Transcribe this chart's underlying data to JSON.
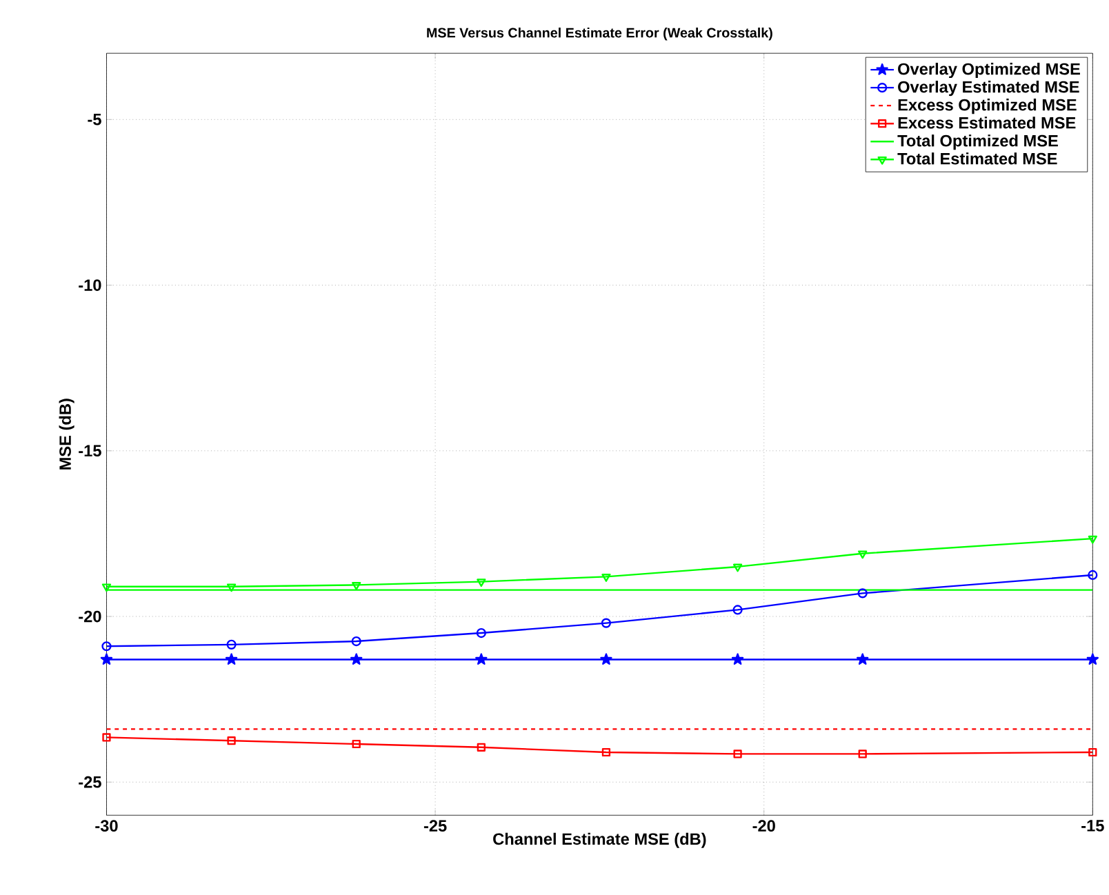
{
  "chart_data": {
    "type": "line",
    "title": "MSE Versus Channel Estimate Error (Weak Crosstalk)",
    "xlabel": "Channel Estimate MSE (dB)",
    "ylabel": "MSE (dB)",
    "x": [
      -30,
      -28.1,
      -26.2,
      -24.3,
      -22.4,
      -20.4,
      -18.5,
      -15
    ],
    "series": [
      {
        "name": "Overlay Optimized MSE",
        "color": "#0000ff",
        "marker": "star",
        "line_style": "solid",
        "values": [
          -21.3,
          -21.3,
          -21.3,
          -21.3,
          -21.3,
          -21.3,
          -21.3,
          -21.3
        ]
      },
      {
        "name": "Overlay Estimated MSE",
        "color": "#0000ff",
        "marker": "circle",
        "line_style": "solid",
        "values": [
          -20.9,
          -20.85,
          -20.75,
          -20.5,
          -20.2,
          -19.8,
          -19.3,
          -18.75
        ]
      },
      {
        "name": "Excess Optimized MSE",
        "color": "#ff0000",
        "marker": "none",
        "line_style": "dashed",
        "values": [
          -23.4,
          -23.4,
          -23.4,
          -23.4,
          -23.4,
          -23.4,
          -23.4,
          -23.4
        ]
      },
      {
        "name": "Excess Estimated MSE",
        "color": "#ff0000",
        "marker": "square",
        "line_style": "solid",
        "values": [
          -23.65,
          -23.75,
          -23.85,
          -23.95,
          -24.1,
          -24.15,
          -24.15,
          -24.1
        ]
      },
      {
        "name": "Total Optimized MSE",
        "color": "#00ff00",
        "marker": "none",
        "line_style": "solid",
        "values": [
          -19.2,
          -19.2,
          -19.2,
          -19.2,
          -19.2,
          -19.2,
          -19.2,
          -19.2
        ]
      },
      {
        "name": "Total Estimated MSE",
        "color": "#00ff00",
        "marker": "triangle",
        "line_style": "solid",
        "values": [
          -19.1,
          -19.1,
          -19.05,
          -18.95,
          -18.8,
          -18.5,
          -18.1,
          -17.65
        ]
      }
    ],
    "xlim": [
      -30,
      -15
    ],
    "ylim": [
      -26,
      -3
    ],
    "xticks": [
      -30,
      -25,
      -20,
      -15
    ],
    "yticks": [
      -25,
      -20,
      -15,
      -10,
      -5
    ],
    "grid": true,
    "legend": "top right"
  }
}
